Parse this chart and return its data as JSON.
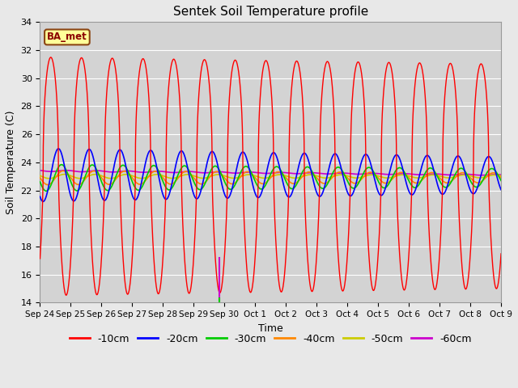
{
  "title": "Sentek Soil Temperature profile",
  "xlabel": "Time",
  "ylabel": "Soil Temperature (C)",
  "ylim": [
    14,
    34
  ],
  "yticks": [
    14,
    16,
    18,
    20,
    22,
    24,
    26,
    28,
    30,
    32,
    34
  ],
  "fig_bg_color": "#e8e8e8",
  "plot_bg_color": "#d3d3d3",
  "annotation_label": "BA_met",
  "annotation_color": "#8B0000",
  "annotation_bg": "#ffff99",
  "series_colors": {
    "-10cm": "#ff0000",
    "-20cm": "#0000ff",
    "-30cm": "#00cc00",
    "-40cm": "#ff8800",
    "-50cm": "#cccc00",
    "-60cm": "#cc00cc"
  },
  "n_points": 2000,
  "x_tick_labels": [
    "Sep 24",
    "Sep 25",
    "Sep 26",
    "Sep 27",
    "Sep 28",
    "Sep 29",
    "Sep 30",
    "Oct 1",
    "Oct 2",
    "Oct 3",
    "Oct 4",
    "Oct 5",
    "Oct 6",
    "Oct 7",
    "Oct 8",
    "Oct 9"
  ],
  "vline_x": 5.83,
  "vline_color": "#cc00cc",
  "vline_green_color": "#00cc00"
}
